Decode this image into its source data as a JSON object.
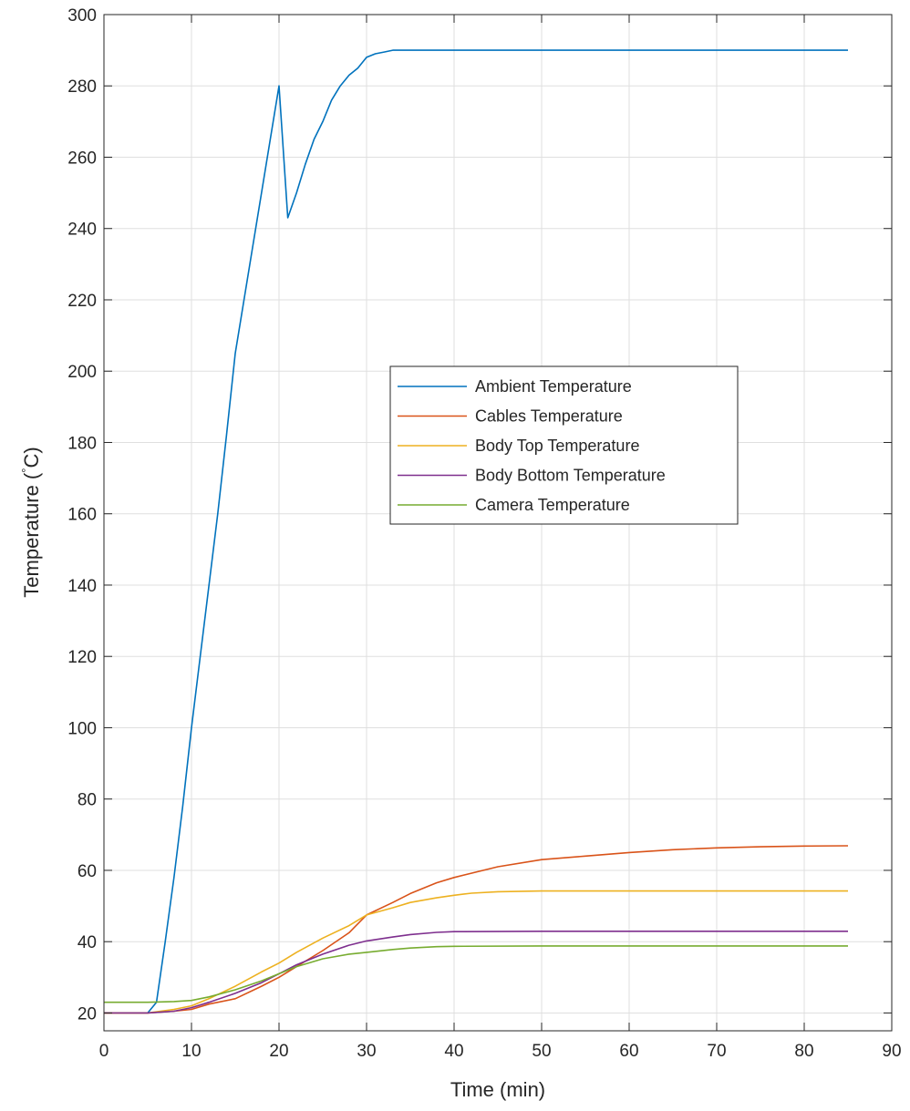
{
  "chart_data": {
    "type": "line",
    "xlabel": "Time (min)",
    "ylabel": "Temperature (",
    "ylabel_unit_symbol": "°",
    "ylabel_unit": "C)",
    "xlim": [
      0,
      90
    ],
    "ylim": [
      15,
      300
    ],
    "xticks": [
      0,
      10,
      20,
      30,
      40,
      50,
      60,
      70,
      80,
      90
    ],
    "yticks": [
      20,
      40,
      60,
      80,
      100,
      120,
      140,
      160,
      180,
      200,
      220,
      240,
      260,
      280,
      300
    ],
    "grid": true,
    "legend_position": "center",
    "series": [
      {
        "name": "Ambient Temperature",
        "color": "#0072BD",
        "x": [
          5,
          6,
          7,
          8,
          9,
          10,
          11,
          12,
          13,
          14,
          15,
          16,
          17,
          18,
          19,
          20,
          21,
          22,
          23,
          24,
          25,
          26,
          27,
          28,
          29,
          30,
          31,
          32,
          33,
          34,
          35,
          40,
          50,
          60,
          70,
          85
        ],
        "y": [
          20,
          23,
          40,
          58,
          78,
          100,
          120,
          140,
          160,
          182,
          205,
          220,
          235,
          250,
          265,
          280,
          243,
          250,
          258,
          265,
          270,
          276,
          280,
          283,
          285,
          288,
          289,
          289.5,
          290,
          290,
          290,
          290,
          290,
          290,
          290,
          290
        ]
      },
      {
        "name": "Cables Temperature",
        "color": "#D95319",
        "x": [
          0,
          5,
          8,
          10,
          12,
          15,
          18,
          20,
          22,
          25,
          28,
          30,
          33,
          35,
          38,
          40,
          45,
          50,
          55,
          60,
          65,
          70,
          75,
          80,
          85
        ],
        "y": [
          20,
          20,
          20.5,
          21,
          22.5,
          24,
          27.5,
          30,
          33,
          37.5,
          42.5,
          47.5,
          51,
          53.5,
          56.5,
          58,
          61,
          63,
          64,
          65,
          65.8,
          66.3,
          66.6,
          66.8,
          66.9
        ]
      },
      {
        "name": "Body Top Temperature",
        "color": "#EDB120",
        "x": [
          0,
          5,
          8,
          10,
          12,
          15,
          18,
          20,
          22,
          25,
          28,
          30,
          33,
          35,
          38,
          40,
          42,
          45,
          50,
          60,
          70,
          85
        ],
        "y": [
          20,
          20,
          21,
          22,
          24,
          27.5,
          31.5,
          34,
          37,
          41,
          44.5,
          47.5,
          49.5,
          51,
          52.3,
          53,
          53.6,
          54,
          54.2,
          54.2,
          54.2,
          54.2
        ]
      },
      {
        "name": "Body Bottom Temperature",
        "color": "#7E2F8E",
        "x": [
          0,
          5,
          8,
          10,
          12,
          15,
          18,
          20,
          22,
          25,
          28,
          30,
          33,
          35,
          38,
          40,
          50,
          60,
          70,
          85
        ],
        "y": [
          20,
          20,
          20.5,
          21.5,
          23,
          25.5,
          28.5,
          31,
          33.5,
          36.5,
          39,
          40.2,
          41.3,
          42,
          42.6,
          42.8,
          42.9,
          42.9,
          42.9,
          42.9
        ]
      },
      {
        "name": "Camera Temperature",
        "color": "#77AC30",
        "x": [
          0,
          5,
          8,
          10,
          12,
          15,
          18,
          20,
          22,
          25,
          28,
          30,
          33,
          35,
          38,
          40,
          50,
          60,
          70,
          85
        ],
        "y": [
          23,
          23,
          23.2,
          23.5,
          24.5,
          26.5,
          29,
          31,
          33,
          35.2,
          36.5,
          37,
          37.8,
          38.2,
          38.6,
          38.7,
          38.8,
          38.8,
          38.8,
          38.8
        ]
      }
    ]
  }
}
